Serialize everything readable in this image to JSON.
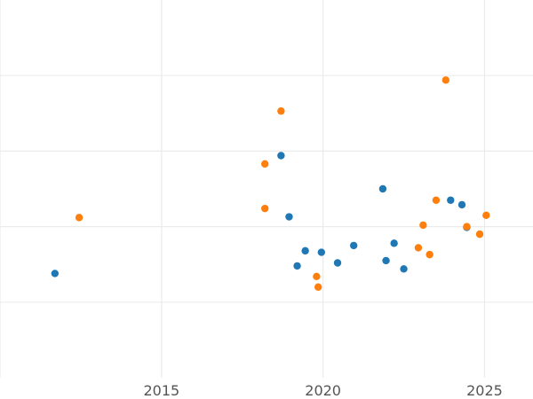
{
  "chart_data": {
    "type": "scatter",
    "title": "",
    "xlabel": "",
    "ylabel": "",
    "xlim": [
      2010,
      2026.5
    ],
    "ylim": [
      0,
      5
    ],
    "x_ticks": [
      2015,
      2020,
      2025
    ],
    "x_tick_labels": [
      "2015",
      "2020",
      "2025"
    ],
    "y_gridlines": [
      1,
      2,
      3,
      4
    ],
    "grid": true,
    "legend": "none",
    "series": [
      {
        "color": "#1f77b4",
        "points": [
          {
            "x": 2011.7,
            "y": 1.38
          },
          {
            "x": 2018.7,
            "y": 2.94
          },
          {
            "x": 2018.95,
            "y": 2.13
          },
          {
            "x": 2019.2,
            "y": 1.48
          },
          {
            "x": 2019.45,
            "y": 1.68
          },
          {
            "x": 2019.95,
            "y": 1.66
          },
          {
            "x": 2020.45,
            "y": 1.52
          },
          {
            "x": 2020.95,
            "y": 1.75
          },
          {
            "x": 2021.85,
            "y": 2.5
          },
          {
            "x": 2021.95,
            "y": 1.55
          },
          {
            "x": 2022.2,
            "y": 1.78
          },
          {
            "x": 2022.5,
            "y": 1.44
          },
          {
            "x": 2023.95,
            "y": 2.35
          },
          {
            "x": 2024.3,
            "y": 2.29
          },
          {
            "x": 2024.45,
            "y": 1.99
          }
        ]
      },
      {
        "color": "#ff7f0e",
        "points": [
          {
            "x": 2012.45,
            "y": 2.12
          },
          {
            "x": 2018.2,
            "y": 2.83
          },
          {
            "x": 2018.2,
            "y": 2.24
          },
          {
            "x": 2018.7,
            "y": 3.53
          },
          {
            "x": 2019.8,
            "y": 1.34
          },
          {
            "x": 2019.85,
            "y": 1.2
          },
          {
            "x": 2022.95,
            "y": 1.72
          },
          {
            "x": 2023.1,
            "y": 2.02
          },
          {
            "x": 2023.3,
            "y": 1.63
          },
          {
            "x": 2023.5,
            "y": 2.35
          },
          {
            "x": 2023.8,
            "y": 3.94
          },
          {
            "x": 2024.45,
            "y": 2.0
          },
          {
            "x": 2024.85,
            "y": 1.9
          },
          {
            "x": 2025.05,
            "y": 2.15
          }
        ]
      }
    ]
  }
}
